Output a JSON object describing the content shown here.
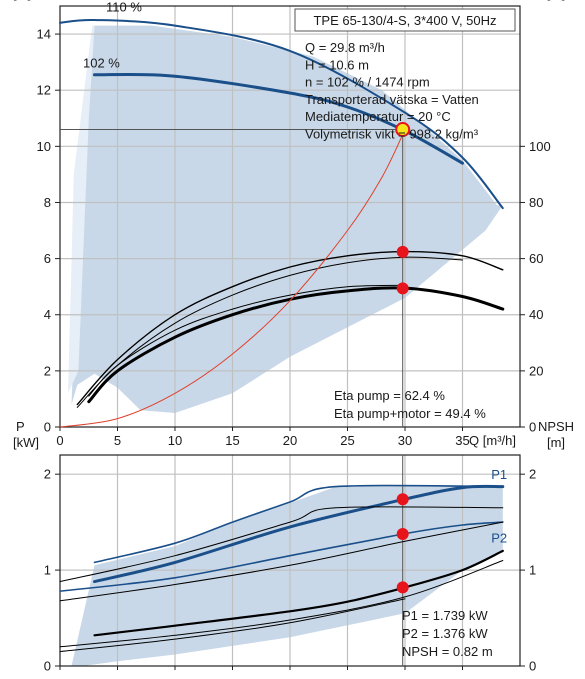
{
  "title_box": "TPE 65-130/4-S, 3*400 V, 50Hz",
  "colors": {
    "band": "#c9d8e8",
    "curve": "#1a4f8a",
    "eff": "#000000",
    "sys": "#e0402a",
    "dot": "#e8141c",
    "duty": "#f7e51b",
    "grid": "#c0c0c0",
    "oppoint": "#555555"
  },
  "chart_data": [
    {
      "type": "line",
      "id": "head_eff",
      "y_label": "H",
      "y_unit": "[m]",
      "y2_label": "eta",
      "y2_unit": "[%]",
      "x_label": "Q [m³/h]",
      "xlim": [
        0,
        40
      ],
      "ylim": [
        0,
        15
      ],
      "y2lim": [
        0,
        150
      ],
      "x_ticks": [
        0,
        5,
        10,
        15,
        20,
        25,
        30,
        35
      ],
      "y_ticks": [
        0,
        2,
        4,
        6,
        8,
        10,
        12,
        14
      ],
      "y2_ticks": [
        0,
        20,
        40,
        60,
        80,
        100
      ],
      "grid": true,
      "info_lines": [
        "Q = 29.8 m³/h",
        "H = 10.6 m",
        "n = 102 % / 1474 rpm",
        "Transporterad vätska = Vatten",
        "Mediatemperatur = 20 °C",
        "Volymetrisk vikt = 998.2 kg/m³"
      ],
      "eta_lines": [
        "Eta pump = 62.4 %",
        "Eta pump+motor = 49.4 %"
      ],
      "curve_labels": [
        {
          "text": "110 %",
          "x": 4.0,
          "y": 14.8
        },
        {
          "text": "102 %",
          "x": 2.0,
          "y": 12.8
        }
      ],
      "band": [
        [
          1.0,
          0.8
        ],
        [
          1.5,
          6.0
        ],
        [
          2.5,
          12.5
        ],
        [
          3.0,
          14.3
        ],
        [
          8,
          14.3
        ],
        [
          15,
          13.9
        ],
        [
          22,
          13.2
        ],
        [
          28,
          12.0
        ],
        [
          32,
          10.6
        ],
        [
          35,
          9.5
        ],
        [
          38,
          7.9
        ],
        [
          38.5,
          7.9
        ],
        [
          37,
          7.0
        ],
        [
          30,
          4.6
        ],
        [
          20,
          2.5
        ],
        [
          15,
          1.2
        ],
        [
          10,
          0.5
        ],
        [
          7,
          0.6
        ],
        [
          5,
          1.4
        ],
        [
          3,
          1.9
        ],
        [
          1.5,
          1.5
        ]
      ],
      "band_light": [
        [
          0.7,
          1.2
        ],
        [
          1.2,
          9.0
        ],
        [
          2.8,
          14.3
        ],
        [
          3.0,
          14.3
        ],
        [
          2.5,
          11.0
        ],
        [
          2.0,
          6.0
        ],
        [
          1.6,
          2.0
        ]
      ],
      "series": [
        {
          "name": "110 %",
          "kind": "head",
          "width": 2.0,
          "x": [
            0,
            3,
            10,
            20,
            30,
            35,
            38.5
          ],
          "y": [
            14.4,
            14.5,
            14.3,
            13.4,
            11.2,
            9.6,
            7.8
          ]
        },
        {
          "name": "102 %",
          "kind": "head",
          "width": 3.0,
          "x": [
            3,
            10,
            20,
            25,
            30,
            35
          ],
          "y": [
            12.55,
            12.5,
            11.9,
            11.4,
            10.55,
            9.4
          ]
        },
        {
          "kind": "eff_thin",
          "width": 1.4,
          "x": [
            1.5,
            5,
            10,
            15,
            20,
            25,
            30,
            35,
            38.5
          ],
          "y": [
            0.8,
            2.4,
            4.0,
            5.0,
            5.7,
            6.1,
            6.25,
            6.1,
            5.6
          ]
        },
        {
          "kind": "eff_thin",
          "width": 1.0,
          "x": [
            1.5,
            5,
            10,
            15,
            20,
            25,
            30,
            35
          ],
          "y": [
            0.7,
            2.2,
            3.7,
            4.7,
            5.4,
            5.85,
            6.05,
            5.95
          ]
        },
        {
          "kind": "eff_thick",
          "width": 3.0,
          "x": [
            2.5,
            5,
            10,
            15,
            20,
            25,
            30,
            35,
            38.5
          ],
          "y": [
            0.9,
            2.0,
            3.2,
            4.0,
            4.55,
            4.85,
            4.95,
            4.65,
            4.2
          ]
        },
        {
          "kind": "eff_thin",
          "width": 1.0,
          "x": [
            2.5,
            5,
            10,
            15,
            20,
            25,
            30
          ],
          "y": [
            1.1,
            2.2,
            3.45,
            4.2,
            4.7,
            5.0,
            5.05
          ]
        },
        {
          "kind": "system",
          "width": 1.0,
          "x": [
            0,
            5,
            10,
            15,
            20,
            25,
            28,
            30
          ],
          "y": [
            0.0,
            0.3,
            1.2,
            2.6,
            4.5,
            7.0,
            8.9,
            10.6
          ]
        }
      ],
      "op_point": {
        "x": 29.8,
        "y": 10.6
      },
      "markers": [
        {
          "x": 29.8,
          "y": 6.24
        },
        {
          "x": 29.8,
          "y": 4.94
        }
      ]
    },
    {
      "type": "line",
      "id": "power_npsh",
      "y_label": "P",
      "y_unit": "[kW]",
      "y2_label": "NPSH",
      "y2_unit": "[m]",
      "xlim": [
        0,
        40
      ],
      "ylim": [
        0,
        2.2
      ],
      "x_ticks": [
        0,
        5,
        10,
        15,
        20,
        25,
        30,
        35
      ],
      "y_ticks": [
        0,
        1,
        2
      ],
      "y2_ticks": [
        0,
        1,
        2
      ],
      "grid": true,
      "info_lines": [
        "P1 = 1.739 kW",
        "P2 = 1.376 kW",
        "NPSH = 0.82 m"
      ],
      "series_labels": [
        {
          "text": "P1",
          "x": 37.5,
          "y": 1.95
        },
        {
          "text": "P2",
          "x": 37.5,
          "y": 1.29
        }
      ],
      "band": [
        [
          1.0,
          0.0
        ],
        [
          3.0,
          1.05
        ],
        [
          10,
          1.25
        ],
        [
          15,
          1.5
        ],
        [
          20,
          1.7
        ],
        [
          24,
          1.87
        ],
        [
          38.5,
          1.87
        ],
        [
          38.5,
          1.2
        ],
        [
          35,
          1.0
        ],
        [
          30,
          0.55
        ],
        [
          20,
          0.3
        ],
        [
          10,
          0.12
        ],
        [
          5,
          0.05
        ],
        [
          2,
          0.0
        ]
      ],
      "series": [
        {
          "name": "P1",
          "kind": "power",
          "width": 1.6,
          "x": [
            3,
            10,
            15,
            20,
            24,
            38.5
          ],
          "y": [
            1.08,
            1.28,
            1.5,
            1.71,
            1.87,
            1.87
          ]
        },
        {
          "name": "P1",
          "kind": "power",
          "width": 3.0,
          "x": [
            3,
            10,
            20,
            30,
            35,
            38.5
          ],
          "y": [
            0.88,
            1.08,
            1.45,
            1.74,
            1.86,
            1.87
          ]
        },
        {
          "kind": "power_thin",
          "width": 1.0,
          "x": [
            0,
            10,
            20,
            24,
            38.5
          ],
          "y": [
            0.88,
            1.15,
            1.5,
            1.65,
            1.65
          ]
        },
        {
          "name": "P2",
          "kind": "power",
          "width": 1.6,
          "x": [
            0,
            10,
            20,
            30,
            35,
            38.5
          ],
          "y": [
            0.78,
            0.92,
            1.15,
            1.38,
            1.47,
            1.5
          ]
        },
        {
          "kind": "power_thin",
          "width": 1.0,
          "x": [
            0,
            10,
            20,
            30,
            38.5
          ],
          "y": [
            0.68,
            0.85,
            1.05,
            1.3,
            1.5
          ]
        },
        {
          "kind": "npsh",
          "width": 2.2,
          "x": [
            3,
            10,
            20,
            25,
            30,
            35,
            38.5
          ],
          "y": [
            0.32,
            0.42,
            0.57,
            0.67,
            0.82,
            1.0,
            1.2
          ]
        },
        {
          "kind": "npsh_thin",
          "width": 1.0,
          "x": [
            0,
            10,
            20,
            30,
            38.5
          ],
          "y": [
            0.2,
            0.32,
            0.48,
            0.72,
            1.1
          ]
        },
        {
          "kind": "npsh_thin",
          "width": 1.0,
          "x": [
            0,
            10,
            20,
            30
          ],
          "y": [
            0.15,
            0.28,
            0.45,
            0.7
          ]
        }
      ],
      "markers": [
        {
          "x": 29.8,
          "y": 1.739
        },
        {
          "x": 29.8,
          "y": 1.376
        },
        {
          "x": 29.8,
          "y": 0.82
        }
      ]
    }
  ]
}
